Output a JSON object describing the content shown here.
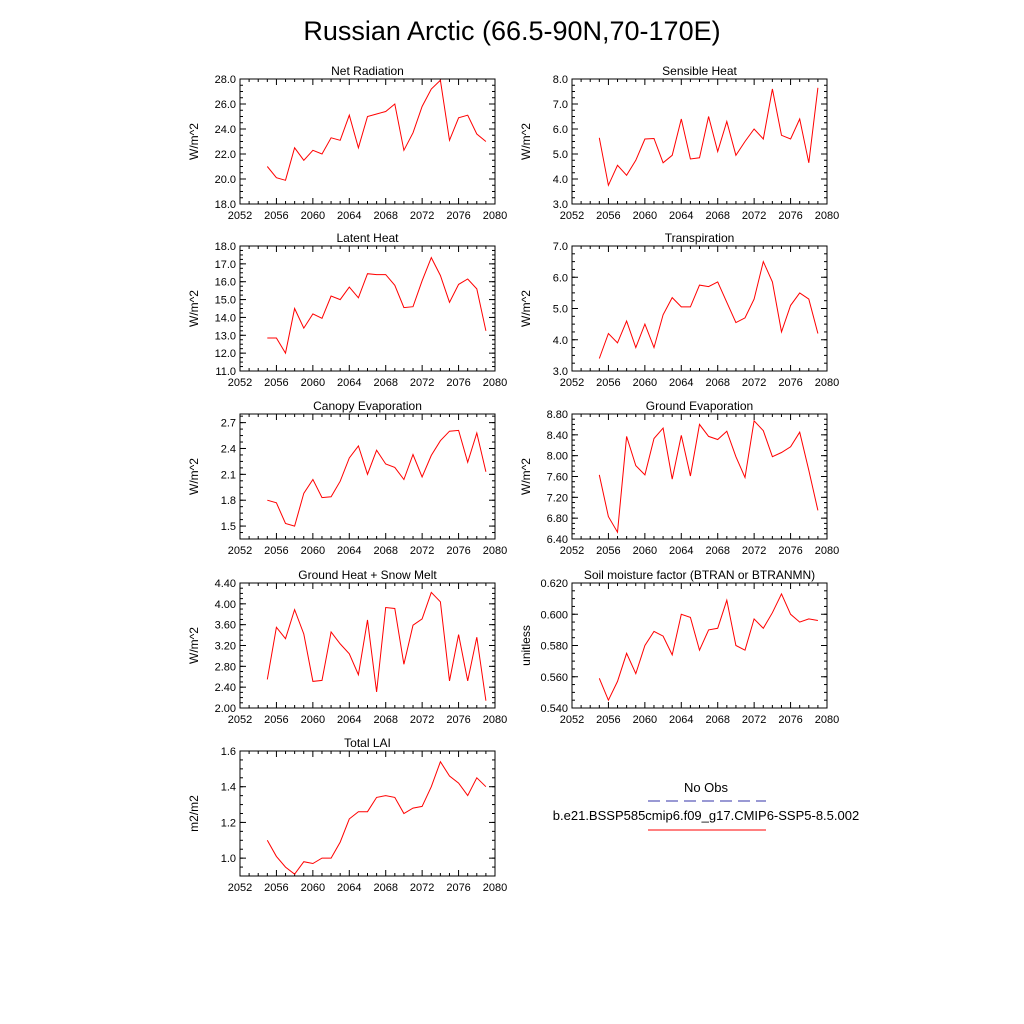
{
  "figure": {
    "title": "Russian Arctic (66.5-90N,70-170E)",
    "series_color": "#ff0000",
    "legend_obs_color": "#3333aa",
    "legend": {
      "obs_label": "No Obs",
      "case_label": "b.e21.BSSP585cmip6.f09_g17.CMIP6-SSP5-8.5.002"
    }
  },
  "chart_data": [
    {
      "type": "line",
      "title": "Net Radiation",
      "ylabel": "W/m^2",
      "xlim": [
        2052,
        2080
      ],
      "ylim": [
        18,
        28
      ],
      "xticks": [
        2052,
        2056,
        2060,
        2064,
        2068,
        2072,
        2076,
        2080
      ],
      "yticks": [
        "18.0",
        "20.0",
        "22.0",
        "24.0",
        "26.0",
        "28.0"
      ],
      "series": [
        {
          "x": [
            2055,
            2056,
            2057,
            2058,
            2059,
            2060,
            2061,
            2062,
            2063,
            2064,
            2065,
            2066,
            2067,
            2068,
            2069,
            2070,
            2071,
            2072,
            2073,
            2074,
            2075,
            2076,
            2077,
            2078,
            2079
          ],
          "values": [
            21.0,
            20.1,
            19.9,
            22.5,
            21.5,
            22.3,
            22.0,
            23.3,
            23.1,
            25.1,
            22.5,
            25.0,
            25.2,
            25.4,
            26.0,
            22.3,
            23.7,
            25.8,
            27.2,
            27.9,
            23.1,
            24.9,
            25.1,
            23.6,
            23.0
          ]
        }
      ]
    },
    {
      "type": "line",
      "title": "Sensible Heat",
      "ylabel": "W/m^2",
      "xlim": [
        2052,
        2080
      ],
      "ylim": [
        3,
        8
      ],
      "xticks": [
        2052,
        2056,
        2060,
        2064,
        2068,
        2072,
        2076,
        2080
      ],
      "yticks": [
        "3.0",
        "4.0",
        "5.0",
        "6.0",
        "7.0",
        "8.0"
      ],
      "series": [
        {
          "x": [
            2055,
            2056,
            2057,
            2058,
            2059,
            2060,
            2061,
            2062,
            2063,
            2064,
            2065,
            2066,
            2067,
            2068,
            2069,
            2070,
            2071,
            2072,
            2073,
            2074,
            2075,
            2076,
            2077,
            2078,
            2079
          ],
          "values": [
            5.65,
            3.75,
            4.55,
            4.15,
            4.75,
            5.6,
            5.62,
            4.65,
            4.95,
            6.4,
            4.8,
            4.85,
            6.5,
            5.1,
            6.3,
            4.95,
            5.5,
            6.0,
            5.6,
            7.6,
            5.75,
            5.6,
            6.4,
            4.65,
            7.65
          ]
        }
      ]
    },
    {
      "type": "line",
      "title": "Latent Heat",
      "ylabel": "W/m^2",
      "xlim": [
        2052,
        2080
      ],
      "ylim": [
        11,
        18
      ],
      "xticks": [
        2052,
        2056,
        2060,
        2064,
        2068,
        2072,
        2076,
        2080
      ],
      "yticks": [
        "11.0",
        "12.0",
        "13.0",
        "14.0",
        "15.0",
        "16.0",
        "17.0",
        "18.0"
      ],
      "series": [
        {
          "x": [
            2055,
            2056,
            2057,
            2058,
            2059,
            2060,
            2061,
            2062,
            2063,
            2064,
            2065,
            2066,
            2067,
            2068,
            2069,
            2070,
            2071,
            2072,
            2073,
            2074,
            2075,
            2076,
            2077,
            2078,
            2079
          ],
          "values": [
            12.85,
            12.85,
            12.0,
            14.5,
            13.4,
            14.2,
            13.95,
            15.2,
            15.0,
            15.7,
            15.1,
            16.45,
            16.4,
            16.4,
            15.8,
            14.55,
            14.6,
            16.05,
            17.35,
            16.35,
            14.85,
            15.85,
            16.15,
            15.6,
            13.25
          ]
        }
      ]
    },
    {
      "type": "line",
      "title": "Transpiration",
      "ylabel": "W/m^2",
      "xlim": [
        2052,
        2080
      ],
      "ylim": [
        3,
        7
      ],
      "xticks": [
        2052,
        2056,
        2060,
        2064,
        2068,
        2072,
        2076,
        2080
      ],
      "yticks": [
        "3.0",
        "4.0",
        "5.0",
        "6.0",
        "7.0"
      ],
      "series": [
        {
          "x": [
            2055,
            2056,
            2057,
            2058,
            2059,
            2060,
            2061,
            2062,
            2063,
            2064,
            2065,
            2066,
            2067,
            2068,
            2069,
            2070,
            2071,
            2072,
            2073,
            2074,
            2075,
            2076,
            2077,
            2078,
            2079
          ],
          "values": [
            3.4,
            4.2,
            3.9,
            4.6,
            3.75,
            4.5,
            3.75,
            4.8,
            5.35,
            5.05,
            5.05,
            5.75,
            5.7,
            5.85,
            5.2,
            4.55,
            4.7,
            5.3,
            6.5,
            5.85,
            4.25,
            5.1,
            5.5,
            5.3,
            4.2
          ]
        }
      ]
    },
    {
      "type": "line",
      "title": "Canopy Evaporation",
      "ylabel": "W/m^2",
      "xlim": [
        2052,
        2080
      ],
      "ylim": [
        1.35,
        2.8
      ],
      "xticks": [
        2052,
        2056,
        2060,
        2064,
        2068,
        2072,
        2076,
        2080
      ],
      "yticks": [
        "1.5",
        "1.8",
        "2.1",
        "2.4",
        "2.7"
      ],
      "series": [
        {
          "x": [
            2055,
            2056,
            2057,
            2058,
            2059,
            2060,
            2061,
            2062,
            2063,
            2064,
            2065,
            2066,
            2067,
            2068,
            2069,
            2070,
            2071,
            2072,
            2073,
            2074,
            2075,
            2076,
            2077,
            2078,
            2079
          ],
          "values": [
            1.8,
            1.77,
            1.53,
            1.5,
            1.88,
            2.04,
            1.83,
            1.84,
            2.02,
            2.29,
            2.43,
            2.1,
            2.38,
            2.22,
            2.18,
            2.04,
            2.33,
            2.07,
            2.32,
            2.49,
            2.6,
            2.61,
            2.24,
            2.58,
            2.13
          ]
        }
      ]
    },
    {
      "type": "line",
      "title": "Ground Evaporation",
      "ylabel": "W/m^2",
      "xlim": [
        2052,
        2080
      ],
      "ylim": [
        6.4,
        8.8
      ],
      "xticks": [
        2052,
        2056,
        2060,
        2064,
        2068,
        2072,
        2076,
        2080
      ],
      "yticks": [
        "6.40",
        "6.80",
        "7.20",
        "7.60",
        "8.00",
        "8.40",
        "8.80"
      ],
      "series": [
        {
          "x": [
            2055,
            2056,
            2057,
            2058,
            2059,
            2060,
            2061,
            2062,
            2063,
            2064,
            2065,
            2066,
            2067,
            2068,
            2069,
            2070,
            2071,
            2072,
            2073,
            2074,
            2075,
            2076,
            2077,
            2078,
            2079
          ],
          "values": [
            7.63,
            6.83,
            6.53,
            8.37,
            7.81,
            7.63,
            8.33,
            8.53,
            7.55,
            8.39,
            7.61,
            8.6,
            8.37,
            8.31,
            8.47,
            7.98,
            7.58,
            8.67,
            8.48,
            7.98,
            8.06,
            8.17,
            8.45,
            7.72,
            6.95
          ]
        }
      ]
    },
    {
      "type": "line",
      "title": "Ground Heat + Snow Melt",
      "ylabel": "W/m^2",
      "xlim": [
        2052,
        2080
      ],
      "ylim": [
        2.0,
        4.4
      ],
      "xticks": [
        2052,
        2056,
        2060,
        2064,
        2068,
        2072,
        2076,
        2080
      ],
      "yticks": [
        "2.00",
        "2.40",
        "2.80",
        "3.20",
        "3.60",
        "4.00",
        "4.40"
      ],
      "series": [
        {
          "x": [
            2055,
            2056,
            2057,
            2058,
            2059,
            2060,
            2061,
            2062,
            2063,
            2064,
            2065,
            2066,
            2067,
            2068,
            2069,
            2070,
            2071,
            2072,
            2073,
            2074,
            2075,
            2076,
            2077,
            2078,
            2079
          ],
          "values": [
            2.55,
            3.55,
            3.33,
            3.89,
            3.42,
            2.51,
            2.53,
            3.46,
            3.23,
            3.04,
            2.64,
            3.69,
            2.31,
            3.93,
            3.91,
            2.84,
            3.59,
            3.71,
            4.22,
            4.04,
            2.52,
            3.41,
            2.52,
            3.36,
            2.14
          ]
        }
      ]
    },
    {
      "type": "line",
      "title": "Soil moisture factor (BTRAN or BTRANMN)",
      "ylabel": "unitless",
      "xlim": [
        2052,
        2080
      ],
      "ylim": [
        0.54,
        0.62
      ],
      "xticks": [
        2052,
        2056,
        2060,
        2064,
        2068,
        2072,
        2076,
        2080
      ],
      "yticks": [
        "0.540",
        "0.560",
        "0.580",
        "0.600",
        "0.620"
      ],
      "series": [
        {
          "x": [
            2055,
            2056,
            2057,
            2058,
            2059,
            2060,
            2061,
            2062,
            2063,
            2064,
            2065,
            2066,
            2067,
            2068,
            2069,
            2070,
            2071,
            2072,
            2073,
            2074,
            2075,
            2076,
            2077,
            2078,
            2079
          ],
          "values": [
            0.559,
            0.545,
            0.557,
            0.575,
            0.562,
            0.58,
            0.589,
            0.586,
            0.574,
            0.6,
            0.598,
            0.577,
            0.59,
            0.591,
            0.609,
            0.58,
            0.577,
            0.597,
            0.591,
            0.601,
            0.613,
            0.6,
            0.595,
            0.597,
            0.596
          ]
        }
      ]
    },
    {
      "type": "line",
      "title": "Total LAI",
      "ylabel": "m2/m2",
      "xlim": [
        2052,
        2080
      ],
      "ylim": [
        0.9,
        1.6
      ],
      "xticks": [
        2052,
        2056,
        2060,
        2064,
        2068,
        2072,
        2076,
        2080
      ],
      "yticks": [
        "1.0",
        "1.2",
        "1.4",
        "1.6"
      ],
      "series": [
        {
          "x": [
            2055,
            2056,
            2057,
            2058,
            2059,
            2060,
            2061,
            2062,
            2063,
            2064,
            2065,
            2066,
            2067,
            2068,
            2069,
            2070,
            2071,
            2072,
            2073,
            2074,
            2075,
            2076,
            2077,
            2078,
            2079
          ],
          "values": [
            1.1,
            1.01,
            0.95,
            0.91,
            0.98,
            0.97,
            1.0,
            1.0,
            1.09,
            1.22,
            1.26,
            1.26,
            1.34,
            1.35,
            1.34,
            1.25,
            1.28,
            1.29,
            1.4,
            1.54,
            1.46,
            1.42,
            1.35,
            1.45,
            1.4
          ]
        }
      ]
    }
  ]
}
